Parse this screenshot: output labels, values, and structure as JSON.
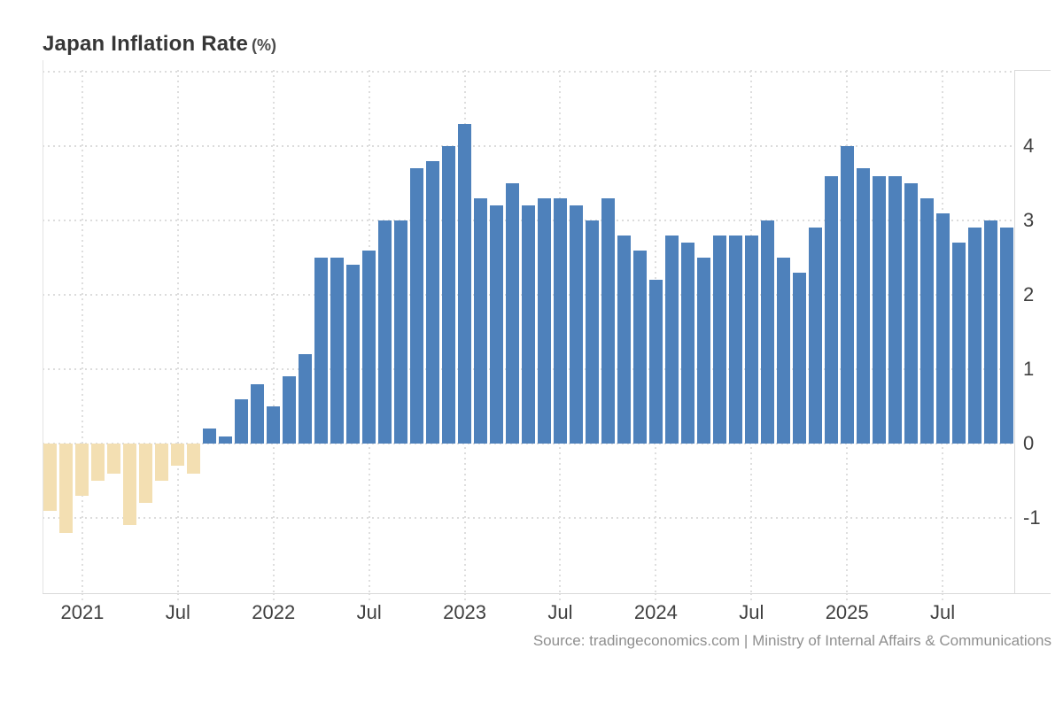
{
  "title": {
    "text": "Japan Inflation Rate",
    "unit": "(%)"
  },
  "source": {
    "text": "Source: tradingeconomics.com | Ministry of Internal Affairs & Communications"
  },
  "colors": {
    "bar_positive": "#4e81bb",
    "bar_negative": "#f3dfb2",
    "grid": "#dcdcdc",
    "axis": "#d9d9d9",
    "tick_label": "#3f3f3f",
    "title": "#363636",
    "source_text": "#8f8f8f",
    "background": "#ffffff"
  },
  "chart_data": {
    "type": "bar",
    "title": "Japan Inflation Rate (%)",
    "xlabel": "",
    "ylabel": "",
    "ylim": [
      -2,
      5
    ],
    "yticks": [
      4,
      3,
      2,
      1,
      0,
      -1
    ],
    "ygrid_unlabeled": [
      5
    ],
    "grid": "dotted",
    "legend": null,
    "x": [
      "2020-11",
      "2020-12",
      "2021-01",
      "2021-02",
      "2021-03",
      "2021-04",
      "2021-05",
      "2021-06",
      "2021-07",
      "2021-08",
      "2021-09",
      "2021-10",
      "2021-11",
      "2021-12",
      "2022-01",
      "2022-02",
      "2022-03",
      "2022-04",
      "2022-05",
      "2022-06",
      "2022-07",
      "2022-08",
      "2022-09",
      "2022-10",
      "2022-11",
      "2022-12",
      "2023-01",
      "2023-02",
      "2023-03",
      "2023-04",
      "2023-05",
      "2023-06",
      "2023-07",
      "2023-08",
      "2023-09",
      "2023-10",
      "2023-11",
      "2023-12",
      "2024-01",
      "2024-02",
      "2024-03",
      "2024-04",
      "2024-05",
      "2024-06",
      "2024-07",
      "2024-08",
      "2024-09",
      "2024-10",
      "2024-11",
      "2024-12",
      "2025-01",
      "2025-02",
      "2025-03",
      "2025-04",
      "2025-05",
      "2025-06",
      "2025-07",
      "2025-08",
      "2025-09",
      "2025-10",
      "2025-11"
    ],
    "values": [
      -0.9,
      -1.2,
      -0.7,
      -0.5,
      -0.4,
      -1.1,
      -0.8,
      -0.5,
      -0.3,
      -0.4,
      0.2,
      0.1,
      0.6,
      0.8,
      0.5,
      0.9,
      1.2,
      2.5,
      2.5,
      2.4,
      2.6,
      3.0,
      3.0,
      3.7,
      3.8,
      4.0,
      4.3,
      3.3,
      3.2,
      3.5,
      3.2,
      3.3,
      3.3,
      3.2,
      3.0,
      3.3,
      2.8,
      2.6,
      2.2,
      2.8,
      2.7,
      2.5,
      2.8,
      2.8,
      2.8,
      3.0,
      2.5,
      2.3,
      2.9,
      3.6,
      4.0,
      3.7,
      3.6,
      3.6,
      3.5,
      3.3,
      3.1,
      2.7,
      2.9,
      3.0,
      2.9
    ],
    "xticks": [
      {
        "index": 2,
        "label": "2021"
      },
      {
        "index": 8,
        "label": "Jul"
      },
      {
        "index": 14,
        "label": "2022"
      },
      {
        "index": 20,
        "label": "Jul"
      },
      {
        "index": 26,
        "label": "2023"
      },
      {
        "index": 32,
        "label": "Jul"
      },
      {
        "index": 38,
        "label": "2024"
      },
      {
        "index": 44,
        "label": "Jul"
      },
      {
        "index": 50,
        "label": "2025"
      },
      {
        "index": 56,
        "label": "Jul"
      }
    ]
  }
}
